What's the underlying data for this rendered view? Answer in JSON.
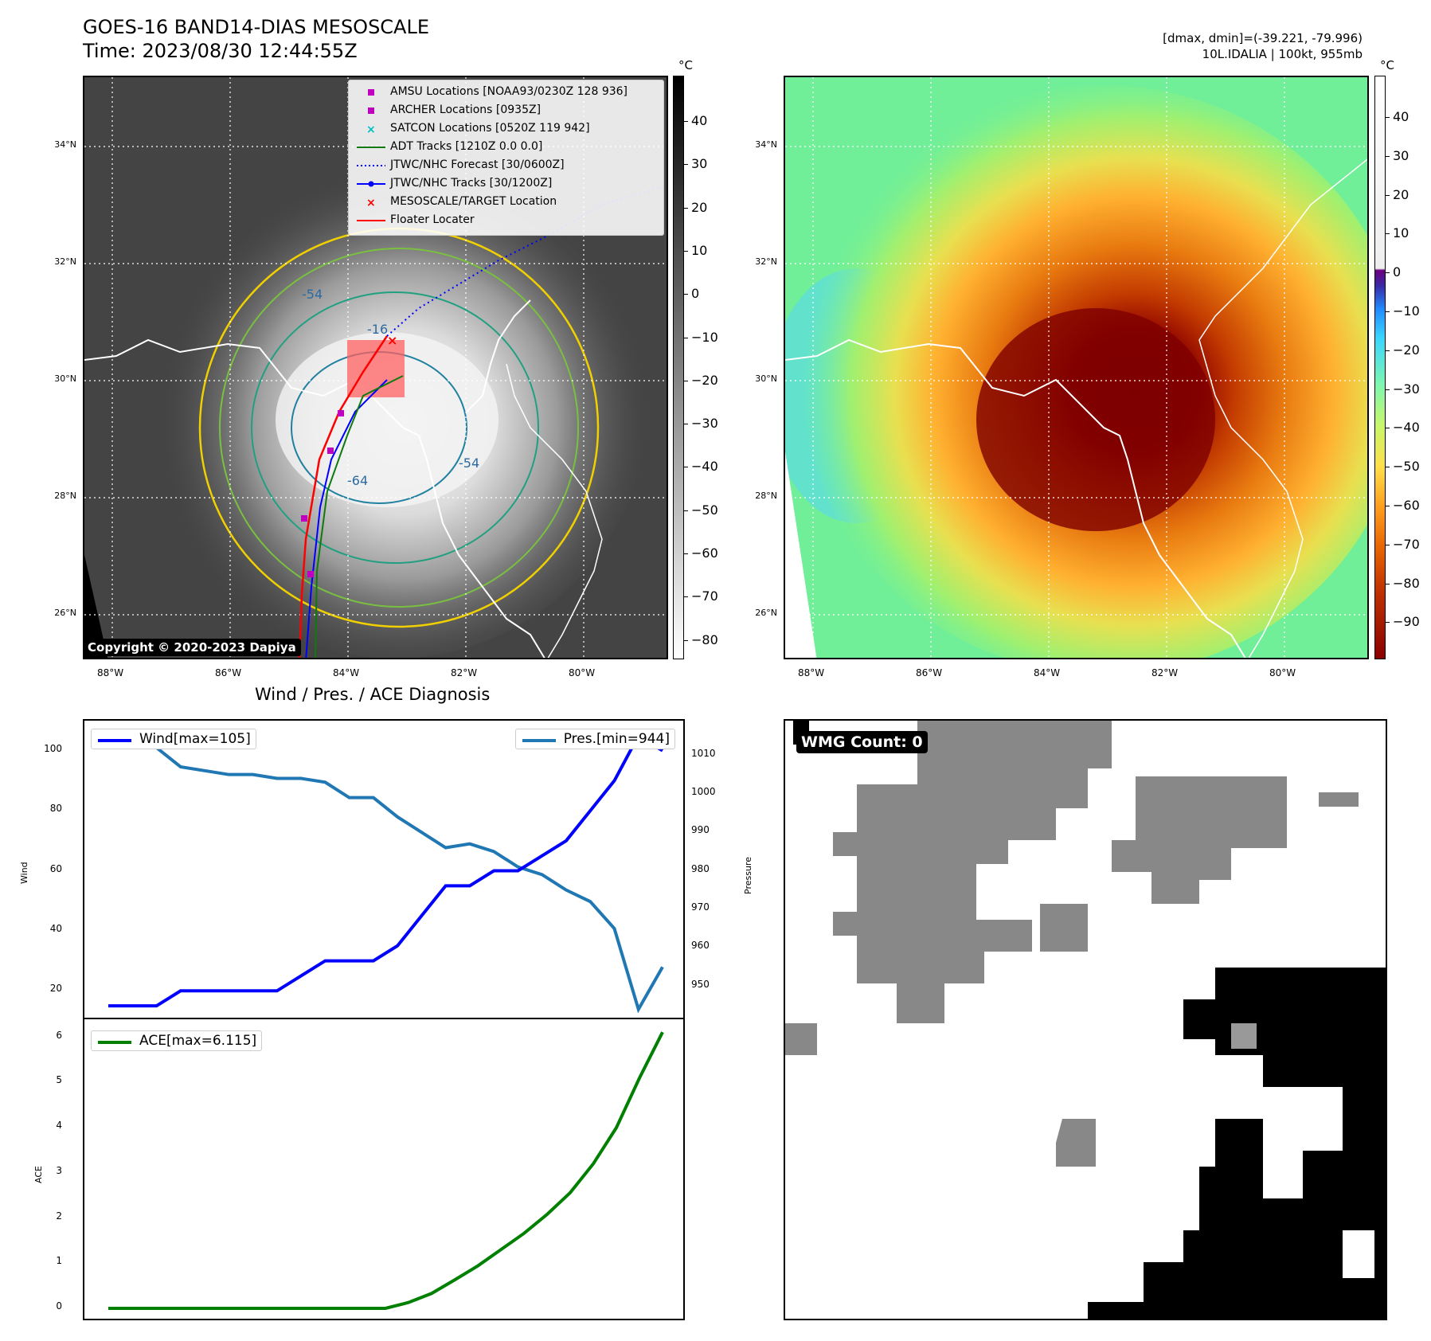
{
  "header": {
    "title_line1": "GOES-16 BAND14-DIAS MESOSCALE",
    "title_line2": "Time: 2023/08/30 12:44:55Z",
    "stats_line1": "[dmax, dmin]=(-39.221, -79.996)",
    "stats_line2": "10L.IDALIA | 100kt, 955mb"
  },
  "map": {
    "lat_labels": [
      "34°N",
      "32°N",
      "30°N",
      "28°N",
      "26°N"
    ],
    "lon_labels": [
      "88°W",
      "86°W",
      "84°W",
      "82°W",
      "80°W"
    ],
    "copyright": "Copyright © 2020-2023 Dapiya",
    "contour_labels": [
      "-54",
      "-16",
      "-54",
      "-64"
    ],
    "legend": [
      {
        "label": "AMSU Locations [NOAA93/0230Z 128 936]",
        "symbol": "square",
        "color": "#c000c0"
      },
      {
        "label": "ARCHER Locations [0935Z]",
        "symbol": "square",
        "color": "#c000c0"
      },
      {
        "label": "SATCON Locations [0520Z 119 942]",
        "symbol": "x",
        "color": "#00c0c0"
      },
      {
        "label": "ADT Tracks [1210Z 0.0 0.0]",
        "symbol": "line",
        "color": "#107a10"
      },
      {
        "label": "JTWC/NHC Forecast [30/0600Z]",
        "symbol": "dotted",
        "color": "#0000ff"
      },
      {
        "label": "JTWC/NHC Tracks [30/1200Z]",
        "symbol": "dotline",
        "color": "#0000ff"
      },
      {
        "label": "MESOSCALE/TARGET Location",
        "symbol": "x",
        "color": "#ff0000"
      },
      {
        "label": "Floater Locater",
        "symbol": "line",
        "color": "#ff0000"
      }
    ]
  },
  "colorbar_left": {
    "unit": "°C",
    "ticks": [
      "40",
      "30",
      "20",
      "10",
      "0",
      "−10",
      "−20",
      "−30",
      "−40",
      "−50",
      "−60",
      "−70",
      "−80"
    ]
  },
  "colorbar_right": {
    "unit": "°C",
    "ticks": [
      "40",
      "30",
      "20",
      "10",
      "0",
      "−10",
      "−20",
      "−30",
      "−40",
      "−50",
      "−60",
      "−70",
      "−80",
      "−90"
    ]
  },
  "section_title": "Wind / Pres. / ACE Diagnosis",
  "wmg": {
    "badge": "WMG Count: 0"
  },
  "chart_data": [
    {
      "type": "line",
      "series": [
        {
          "name": "Wind[max=105]",
          "axis": "left",
          "color": "#0000ff",
          "values": [
            15,
            15,
            15,
            20,
            20,
            20,
            20,
            20,
            25,
            30,
            30,
            30,
            35,
            45,
            55,
            55,
            60,
            60,
            65,
            70,
            80,
            90,
            105,
            100
          ]
        },
        {
          "name": "Pres.[min=944]",
          "axis": "right",
          "color": "#1f77b4",
          "values": [
            1012,
            1012,
            1012,
            1007,
            1006,
            1005,
            1005,
            1004,
            1004,
            1003,
            999,
            999,
            994,
            990,
            986,
            987,
            985,
            981,
            979,
            975,
            972,
            965,
            944,
            955
          ]
        }
      ],
      "ylabel": "Wind",
      "ylabel_right": "Pressure",
      "yticks": [
        "100",
        "80",
        "60",
        "40",
        "20"
      ],
      "yticks_right": [
        "1010",
        "1000",
        "990",
        "980",
        "970",
        "960",
        "950"
      ],
      "ylim": [
        10,
        110
      ],
      "ylim_right": [
        941,
        1019
      ]
    },
    {
      "type": "line",
      "series": [
        {
          "name": "ACE[max=6.115]",
          "color": "#008000",
          "values": [
            0,
            0,
            0,
            0,
            0,
            0,
            0,
            0,
            0,
            0,
            0,
            0,
            0,
            0.13,
            0.33,
            0.63,
            0.94,
            1.3,
            1.66,
            2.08,
            2.56,
            3.2,
            4.0,
            5.1,
            6.115
          ]
        }
      ],
      "ylabel": "ACE",
      "yticks": [
        "6",
        "5",
        "4",
        "3",
        "2",
        "1",
        "0"
      ],
      "ylim": [
        -0.3,
        6.4
      ]
    }
  ]
}
